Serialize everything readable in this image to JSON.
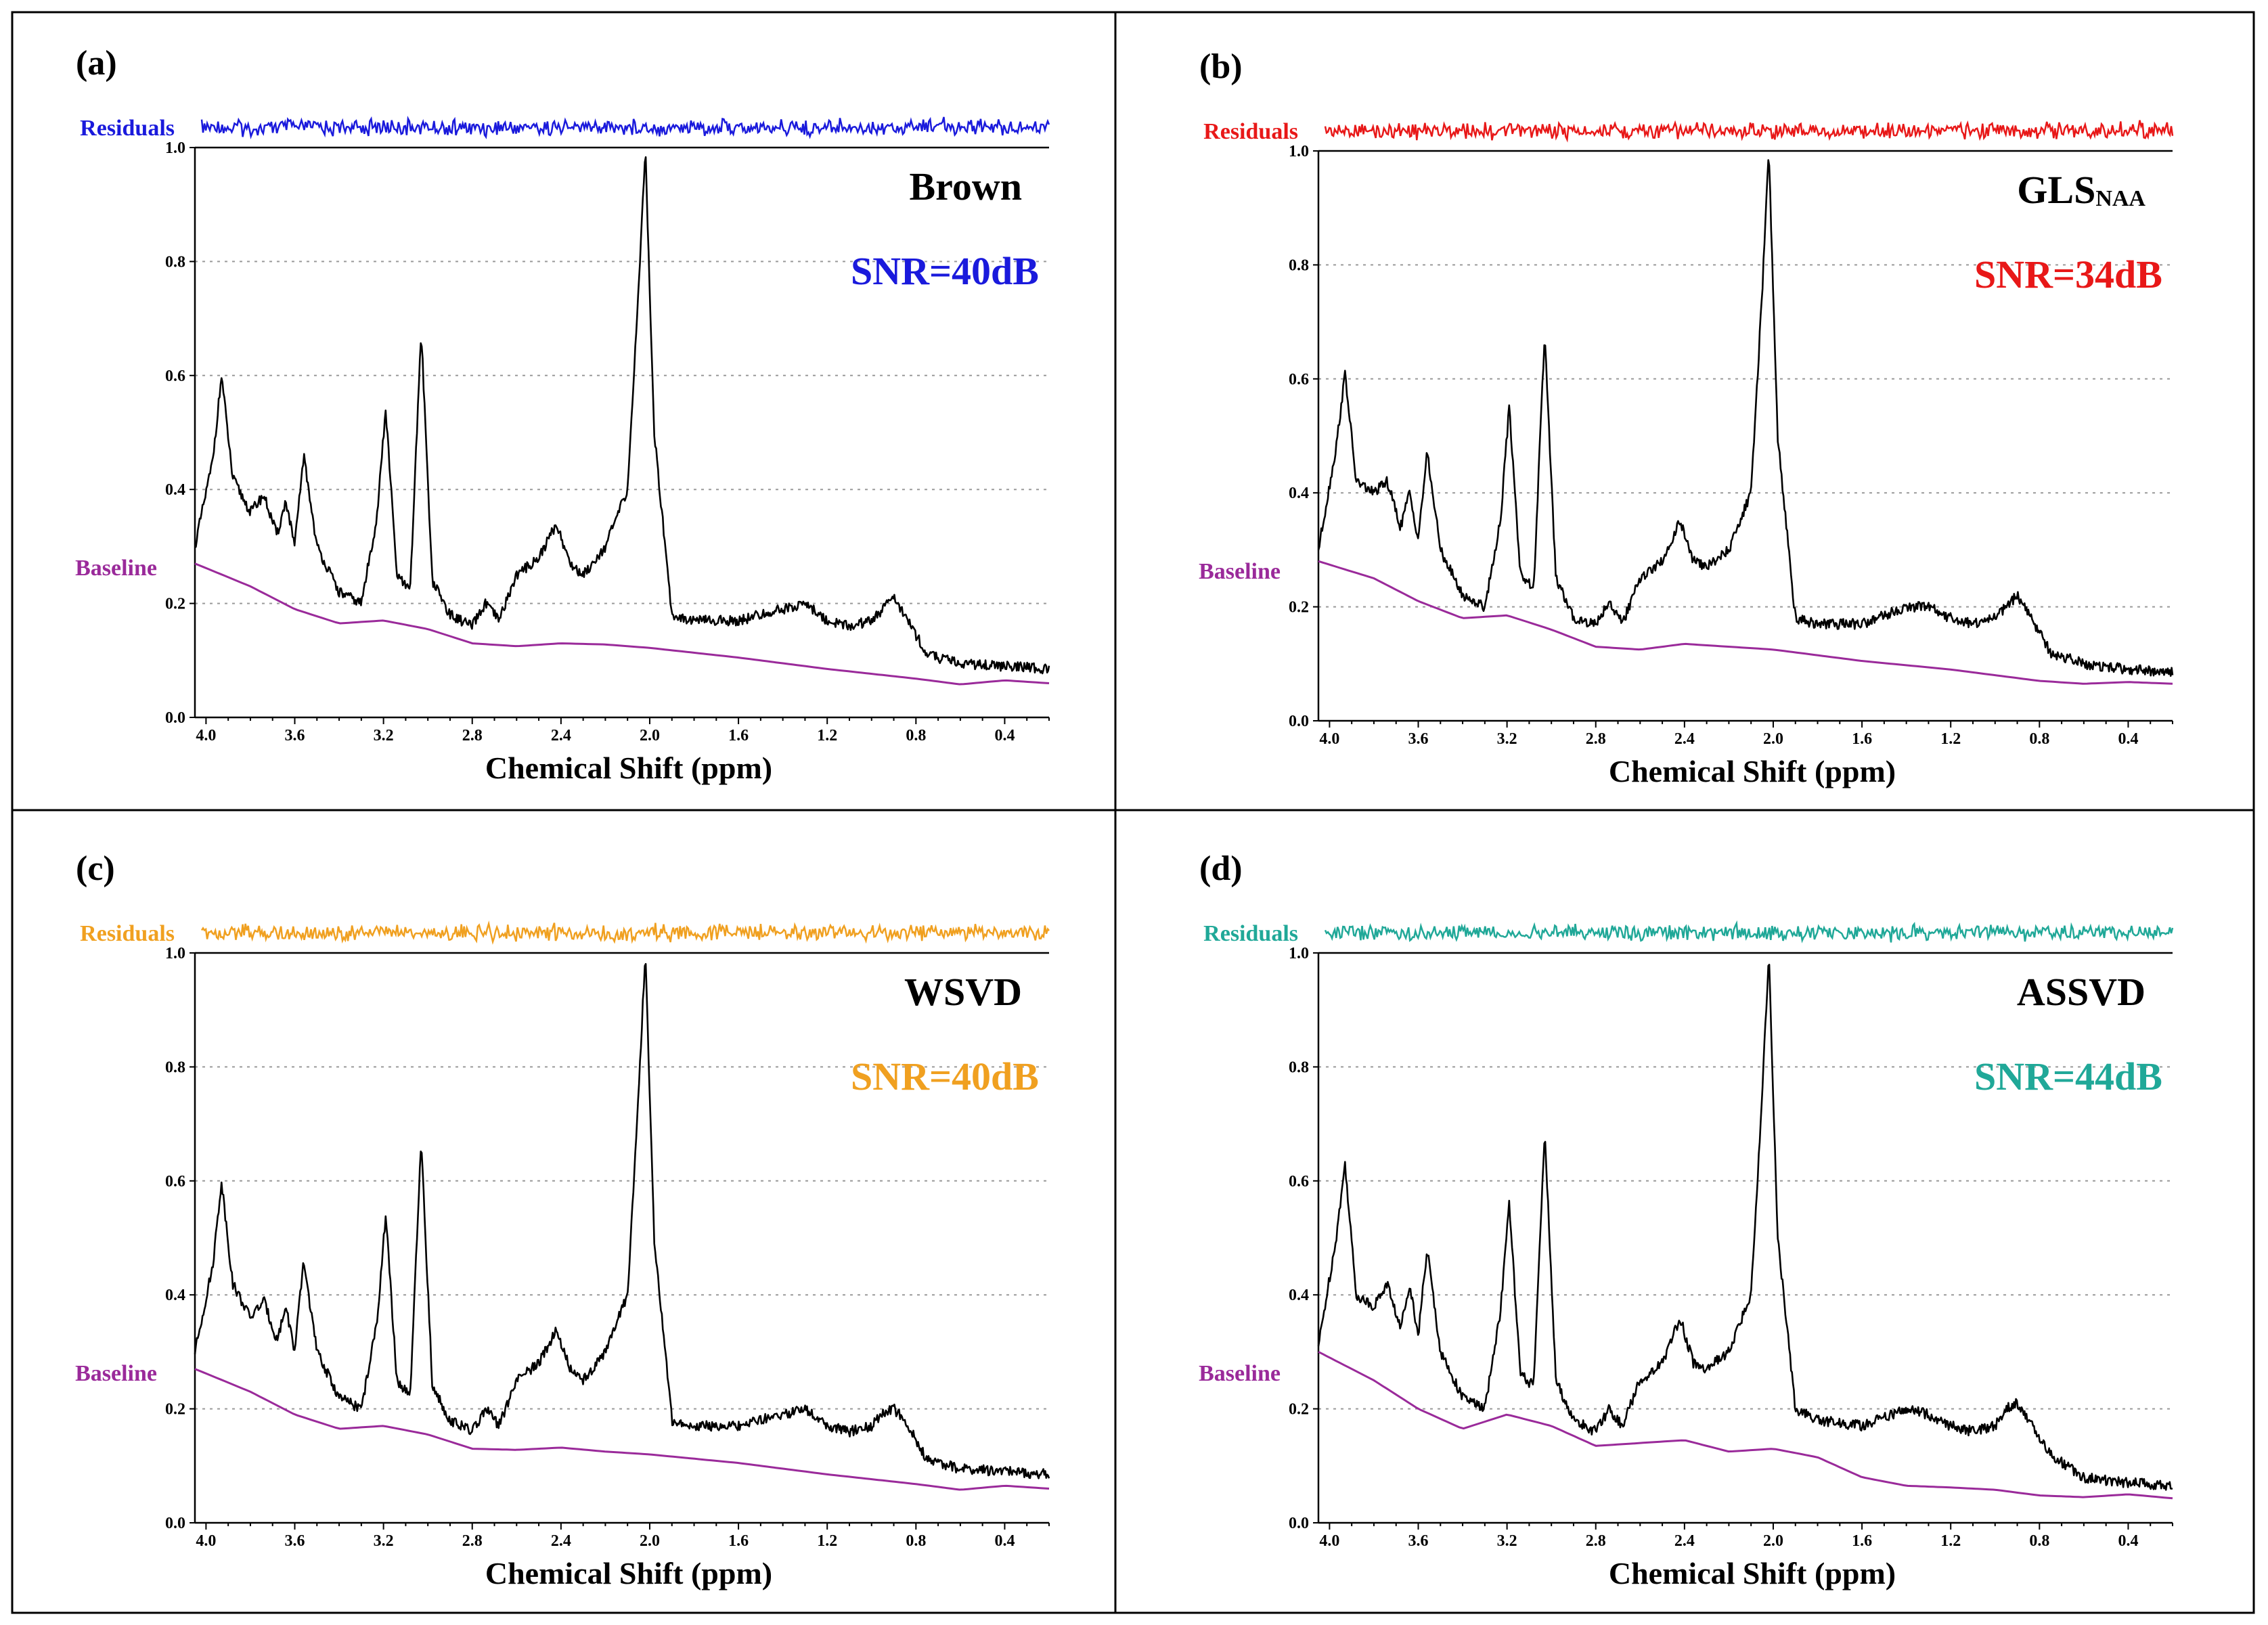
{
  "chart_data": [
    {
      "type": "line",
      "panel": "(a)",
      "method": "Brown",
      "method_sub": "",
      "snr": "SNR=40dB",
      "color": "#1a1adc",
      "baseline_color": "#9a2a9a",
      "residuals_label": "Residuals",
      "baseline_label": "Baseline",
      "xlabel": "Chemical Shift (ppm)",
      "xlim": [
        4.05,
        0.2
      ],
      "ylim": [
        0,
        1.0
      ],
      "xticks": [
        "4.0",
        "3.6",
        "3.2",
        "2.8",
        "2.4",
        "2.0",
        "1.6",
        "1.2",
        "0.8",
        "0.4"
      ],
      "yticks": [
        "0.0",
        "0.2",
        "0.4",
        "0.6",
        "0.8",
        "1.0"
      ],
      "baseline": {
        "x": [
          4.05,
          3.8,
          3.6,
          3.4,
          3.2,
          3.0,
          2.8,
          2.6,
          2.4,
          2.2,
          2.0,
          1.6,
          1.2,
          0.8,
          0.6,
          0.4,
          0.2
        ],
        "y": [
          0.27,
          0.23,
          0.19,
          0.165,
          0.17,
          0.155,
          0.13,
          0.125,
          0.13,
          0.128,
          0.122,
          0.105,
          0.085,
          0.068,
          0.058,
          0.065,
          0.06
        ]
      },
      "spectrum": {
        "x": [
          4.05,
          3.97,
          3.93,
          3.88,
          3.8,
          3.74,
          3.68,
          3.64,
          3.6,
          3.56,
          3.5,
          3.4,
          3.3,
          3.23,
          3.19,
          3.14,
          3.08,
          3.03,
          2.98,
          2.9,
          2.8,
          2.74,
          2.68,
          2.6,
          2.5,
          2.42,
          2.36,
          2.3,
          2.2,
          2.1,
          2.05,
          2.02,
          1.98,
          1.9,
          1.8,
          1.6,
          1.4,
          1.3,
          1.2,
          1.1,
          1.0,
          0.95,
          0.9,
          0.85,
          0.75,
          0.6,
          0.4,
          0.2
        ],
        "y": [
          0.3,
          0.45,
          0.6,
          0.42,
          0.36,
          0.39,
          0.32,
          0.38,
          0.3,
          0.46,
          0.3,
          0.22,
          0.2,
          0.35,
          0.54,
          0.25,
          0.22,
          0.68,
          0.24,
          0.18,
          0.16,
          0.2,
          0.17,
          0.25,
          0.28,
          0.34,
          0.27,
          0.25,
          0.3,
          0.4,
          0.75,
          1.0,
          0.5,
          0.18,
          0.17,
          0.17,
          0.19,
          0.2,
          0.17,
          0.16,
          0.17,
          0.19,
          0.21,
          0.18,
          0.11,
          0.095,
          0.09,
          0.085
        ]
      }
    },
    {
      "type": "line",
      "panel": "(b)",
      "method": "GLS",
      "method_sub": "NAA",
      "snr": "SNR=34dB",
      "color": "#e81818",
      "baseline_color": "#9a2a9a",
      "residuals_label": "Residuals",
      "baseline_label": "Baseline",
      "xlabel": "Chemical Shift (ppm)",
      "xlim": [
        4.05,
        0.2
      ],
      "ylim": [
        0,
        1.0
      ],
      "xticks": [
        "4.0",
        "3.6",
        "3.2",
        "2.8",
        "2.4",
        "2.0",
        "1.6",
        "1.2",
        "0.8",
        "0.4"
      ],
      "yticks": [
        "0.0",
        "0.2",
        "0.4",
        "0.6",
        "0.8",
        "1.0"
      ],
      "baseline": {
        "x": [
          4.05,
          3.8,
          3.6,
          3.4,
          3.2,
          3.0,
          2.8,
          2.6,
          2.4,
          2.2,
          2.0,
          1.6,
          1.2,
          0.8,
          0.6,
          0.4,
          0.2
        ],
        "y": [
          0.28,
          0.25,
          0.21,
          0.18,
          0.185,
          0.16,
          0.13,
          0.125,
          0.135,
          0.13,
          0.125,
          0.105,
          0.09,
          0.07,
          0.065,
          0.068,
          0.065
        ]
      },
      "spectrum": {
        "x": [
          4.05,
          3.97,
          3.93,
          3.88,
          3.8,
          3.74,
          3.68,
          3.64,
          3.6,
          3.56,
          3.5,
          3.4,
          3.3,
          3.23,
          3.19,
          3.14,
          3.08,
          3.03,
          2.98,
          2.9,
          2.8,
          2.74,
          2.68,
          2.6,
          2.5,
          2.42,
          2.36,
          2.3,
          2.2,
          2.1,
          2.05,
          2.02,
          1.98,
          1.9,
          1.8,
          1.6,
          1.4,
          1.3,
          1.2,
          1.1,
          1.0,
          0.95,
          0.9,
          0.85,
          0.75,
          0.6,
          0.4,
          0.2
        ],
        "y": [
          0.3,
          0.48,
          0.61,
          0.42,
          0.4,
          0.42,
          0.34,
          0.4,
          0.32,
          0.47,
          0.3,
          0.22,
          0.2,
          0.35,
          0.55,
          0.26,
          0.23,
          0.68,
          0.25,
          0.18,
          0.17,
          0.21,
          0.17,
          0.25,
          0.28,
          0.35,
          0.28,
          0.27,
          0.3,
          0.4,
          0.75,
          1.0,
          0.5,
          0.18,
          0.17,
          0.17,
          0.2,
          0.2,
          0.18,
          0.17,
          0.18,
          0.2,
          0.22,
          0.19,
          0.12,
          0.1,
          0.09,
          0.085
        ]
      }
    },
    {
      "type": "line",
      "panel": "(c)",
      "method": "WSVD",
      "method_sub": "",
      "snr": "SNR=40dB",
      "color": "#f0a020",
      "baseline_color": "#9a2a9a",
      "residuals_label": "Residuals",
      "baseline_label": "Baseline",
      "xlabel": "Chemical Shift (ppm)",
      "xlim": [
        4.05,
        0.2
      ],
      "ylim": [
        0,
        1.0
      ],
      "xticks": [
        "4.0",
        "3.6",
        "3.2",
        "2.8",
        "2.4",
        "2.0",
        "1.6",
        "1.2",
        "0.8",
        "0.4"
      ],
      "yticks": [
        "0.0",
        "0.2",
        "0.4",
        "0.6",
        "0.8",
        "1.0"
      ],
      "baseline": {
        "x": [
          4.05,
          3.8,
          3.6,
          3.4,
          3.2,
          3.0,
          2.8,
          2.6,
          2.4,
          2.2,
          2.0,
          1.6,
          1.2,
          0.8,
          0.6,
          0.4,
          0.2
        ],
        "y": [
          0.27,
          0.23,
          0.19,
          0.165,
          0.17,
          0.155,
          0.13,
          0.128,
          0.132,
          0.125,
          0.12,
          0.105,
          0.085,
          0.068,
          0.058,
          0.065,
          0.06
        ]
      },
      "spectrum": {
        "x": [
          4.05,
          3.97,
          3.93,
          3.88,
          3.8,
          3.74,
          3.68,
          3.64,
          3.6,
          3.56,
          3.5,
          3.4,
          3.3,
          3.23,
          3.19,
          3.14,
          3.08,
          3.03,
          2.98,
          2.9,
          2.8,
          2.74,
          2.68,
          2.6,
          2.5,
          2.42,
          2.36,
          2.3,
          2.2,
          2.1,
          2.05,
          2.02,
          1.98,
          1.9,
          1.8,
          1.6,
          1.4,
          1.3,
          1.2,
          1.1,
          1.0,
          0.95,
          0.9,
          0.85,
          0.75,
          0.6,
          0.4,
          0.2
        ],
        "y": [
          0.3,
          0.45,
          0.6,
          0.42,
          0.36,
          0.39,
          0.32,
          0.38,
          0.3,
          0.46,
          0.3,
          0.22,
          0.2,
          0.35,
          0.54,
          0.25,
          0.22,
          0.67,
          0.24,
          0.18,
          0.16,
          0.2,
          0.17,
          0.25,
          0.28,
          0.34,
          0.27,
          0.25,
          0.3,
          0.4,
          0.75,
          1.0,
          0.5,
          0.18,
          0.17,
          0.17,
          0.19,
          0.2,
          0.17,
          0.16,
          0.17,
          0.19,
          0.2,
          0.18,
          0.11,
          0.095,
          0.09,
          0.085
        ]
      }
    },
    {
      "type": "line",
      "panel": "(d)",
      "method": "ASSVD",
      "method_sub": "",
      "snr": "SNR=44dB",
      "color": "#20a898",
      "baseline_color": "#9a2a9a",
      "residuals_label": "Residuals",
      "baseline_label": "Baseline",
      "xlabel": "Chemical Shift (ppm)",
      "xlim": [
        4.05,
        0.2
      ],
      "ylim": [
        0,
        1.0
      ],
      "xticks": [
        "4.0",
        "3.6",
        "3.2",
        "2.8",
        "2.4",
        "2.0",
        "1.6",
        "1.2",
        "0.8",
        "0.4"
      ],
      "yticks": [
        "0.0",
        "0.2",
        "0.4",
        "0.6",
        "0.8",
        "1.0"
      ],
      "baseline": {
        "x": [
          4.05,
          3.8,
          3.6,
          3.4,
          3.2,
          3.0,
          2.8,
          2.6,
          2.4,
          2.2,
          2.0,
          1.8,
          1.6,
          1.4,
          1.2,
          1.0,
          0.8,
          0.6,
          0.4,
          0.2
        ],
        "y": [
          0.3,
          0.25,
          0.2,
          0.165,
          0.19,
          0.17,
          0.135,
          0.14,
          0.145,
          0.125,
          0.13,
          0.115,
          0.08,
          0.065,
          0.062,
          0.058,
          0.048,
          0.045,
          0.05,
          0.043
        ]
      },
      "spectrum": {
        "x": [
          4.05,
          3.97,
          3.93,
          3.88,
          3.8,
          3.74,
          3.68,
          3.64,
          3.6,
          3.56,
          3.5,
          3.4,
          3.3,
          3.23,
          3.19,
          3.14,
          3.08,
          3.03,
          2.98,
          2.9,
          2.8,
          2.74,
          2.68,
          2.6,
          2.5,
          2.42,
          2.36,
          2.3,
          2.2,
          2.1,
          2.05,
          2.02,
          1.98,
          1.9,
          1.8,
          1.6,
          1.4,
          1.3,
          1.2,
          1.1,
          1.0,
          0.95,
          0.9,
          0.85,
          0.75,
          0.6,
          0.4,
          0.2
        ],
        "y": [
          0.31,
          0.5,
          0.63,
          0.4,
          0.38,
          0.42,
          0.34,
          0.42,
          0.33,
          0.48,
          0.3,
          0.22,
          0.2,
          0.37,
          0.56,
          0.26,
          0.24,
          0.69,
          0.25,
          0.18,
          0.16,
          0.2,
          0.17,
          0.25,
          0.28,
          0.36,
          0.28,
          0.27,
          0.3,
          0.4,
          0.75,
          1.0,
          0.5,
          0.2,
          0.18,
          0.17,
          0.2,
          0.19,
          0.17,
          0.16,
          0.17,
          0.2,
          0.21,
          0.18,
          0.12,
          0.08,
          0.07,
          0.065
        ]
      }
    }
  ]
}
